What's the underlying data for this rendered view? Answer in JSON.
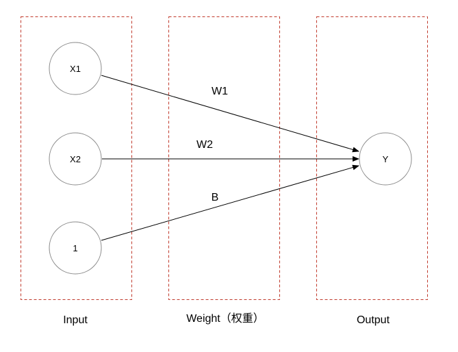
{
  "columns": [
    {
      "id": "input",
      "label": "Input"
    },
    {
      "id": "weight",
      "label": "Weight（权重）"
    },
    {
      "id": "output",
      "label": "Output"
    }
  ],
  "nodes": [
    {
      "id": "x1",
      "label": "X1",
      "column": "input"
    },
    {
      "id": "x2",
      "label": "X2",
      "column": "input"
    },
    {
      "id": "one",
      "label": "1",
      "column": "input"
    },
    {
      "id": "y",
      "label": "Y",
      "column": "output"
    }
  ],
  "edges": [
    {
      "from": "x1",
      "to": "y",
      "label": "W1"
    },
    {
      "from": "x2",
      "to": "y",
      "label": "W2"
    },
    {
      "from": "one",
      "to": "y",
      "label": "B"
    }
  ],
  "colors": {
    "column_border": "#c0392b",
    "node_stroke": "#8a8a8a",
    "edge": "#000000"
  }
}
